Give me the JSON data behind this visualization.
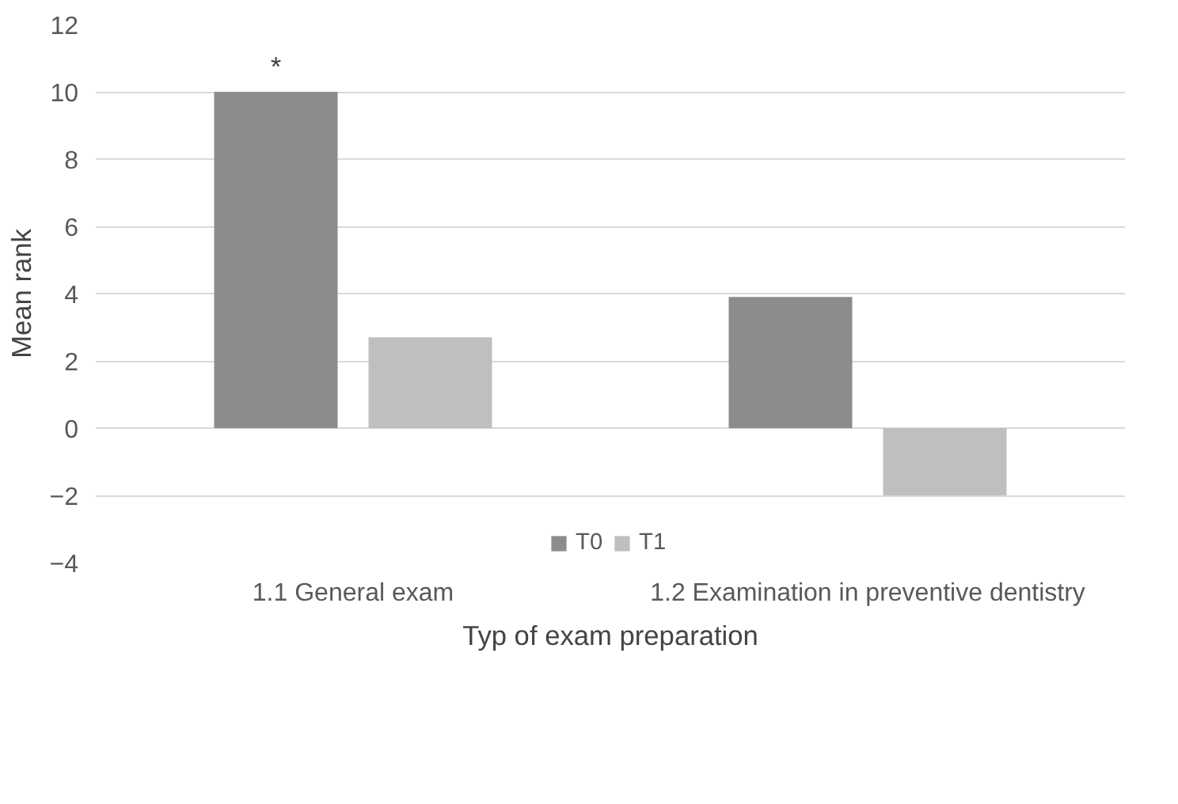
{
  "chart_data": {
    "type": "bar",
    "categories": [
      "1.1 General exam",
      "1.2 Examination in preventive dentistry"
    ],
    "series": [
      {
        "name": "T0",
        "color": "#8c8c8c",
        "values": [
          10.0,
          3.9
        ]
      },
      {
        "name": "T1",
        "color": "#bfbfbf",
        "values": [
          2.7,
          -2.0
        ]
      }
    ],
    "xlabel": "Typ of exam preparation",
    "ylabel": "Mean rank",
    "ylim": [
      -4,
      12
    ],
    "yticks": [
      -4,
      -2,
      0,
      2,
      4,
      6,
      8,
      10,
      12
    ],
    "annotations": [
      "*"
    ],
    "grid": "y",
    "legend": "bottom"
  }
}
